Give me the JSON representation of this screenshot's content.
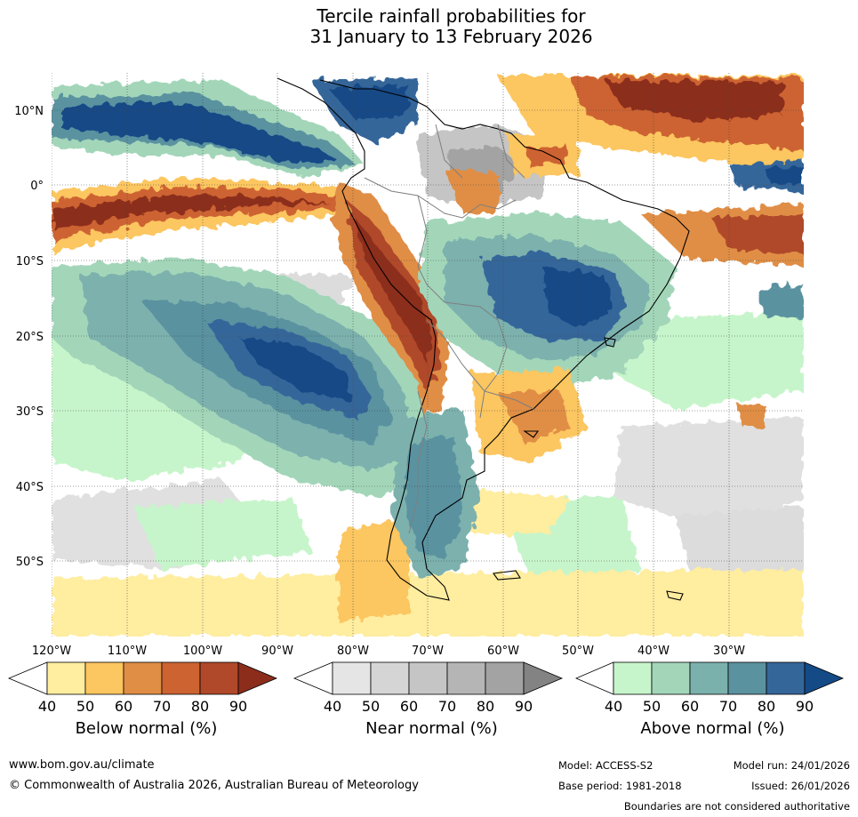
{
  "title": {
    "line1": "Tercile rainfall probabilities for",
    "line2": "31 January to 13 February 2026"
  },
  "map": {
    "lat_labels": [
      "10°N",
      "0°",
      "10°S",
      "20°S",
      "30°S",
      "40°S",
      "50°S"
    ],
    "lon_labels": [
      "120°W",
      "110°W",
      "100°W",
      "90°W",
      "80°W",
      "70°W",
      "60°W",
      "50°W",
      "40°W",
      "30°W"
    ]
  },
  "legends": [
    {
      "title": "Below normal (%)",
      "ticks": [
        "40",
        "50",
        "60",
        "70",
        "80",
        "90"
      ],
      "colors": [
        "#ffeda0",
        "#fcc660",
        "#e08e45",
        "#cd6331",
        "#b0482a",
        "#8c2d1c"
      ]
    },
    {
      "title": "Near normal (%)",
      "ticks": [
        "40",
        "50",
        "60",
        "70",
        "80",
        "90"
      ],
      "colors": [
        "#e5e5e5",
        "#d5d5d5",
        "#c5c5c5",
        "#b5b5b5",
        "#a3a3a3",
        "#838383"
      ]
    },
    {
      "title": "Above normal (%)",
      "ticks": [
        "40",
        "50",
        "60",
        "70",
        "80",
        "90"
      ],
      "colors": [
        "#c7f5cb",
        "#a3d6b9",
        "#7bb1ad",
        "#5a92a0",
        "#34669a",
        "#144a86"
      ]
    }
  ],
  "footer": {
    "url": "www.bom.gov.au/climate",
    "copyright": "© Commonwealth of Australia 2026, Australian Bureau of Meteorology",
    "model": "Model: ACCESS-S2",
    "model_run": "Model run: 24/01/2026",
    "base_period": "Base period: 1981-2018",
    "issued": "Issued: 26/01/2026",
    "disclaimer": "Boundaries are not considered authoritative"
  }
}
